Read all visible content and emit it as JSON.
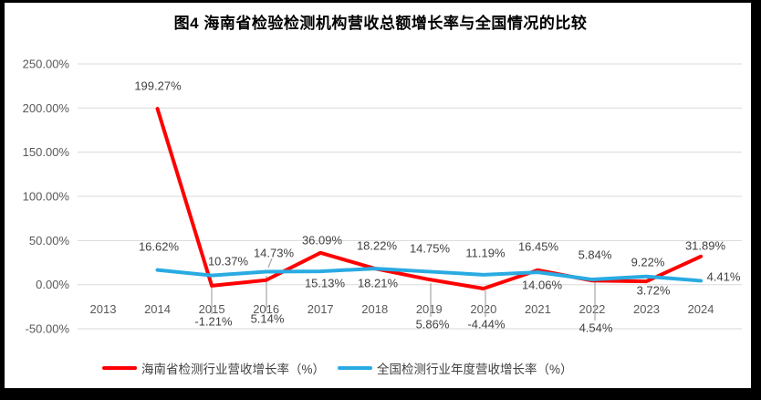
{
  "title": "图4  海南省检验检测机构营收总额增长率与全国情况的比较",
  "chart_data": {
    "type": "line",
    "categories": [
      "2013",
      "2014",
      "2015",
      "2016",
      "2017",
      "2018",
      "2019",
      "2020",
      "2021",
      "2022",
      "2023",
      "2024"
    ],
    "series": [
      {
        "name": "海南省检测行业营收增长率（%）",
        "color": "#FE0000",
        "values": [
          null,
          199.27,
          -1.21,
          5.14,
          36.09,
          18.22,
          5.86,
          -4.44,
          16.45,
          4.54,
          3.72,
          31.89
        ],
        "labels": [
          "199.27%",
          "-1.21%",
          "5.14%",
          "36.09%",
          "18.22%",
          "5.86%",
          "-4.44%",
          "16.45%",
          "4.54%",
          "3.72%",
          "31.89%"
        ]
      },
      {
        "name": "全国检测行业年度营收增长率（%）",
        "color": "#29ABE2",
        "values": [
          null,
          16.62,
          10.37,
          14.73,
          15.13,
          18.21,
          14.75,
          11.19,
          14.06,
          5.84,
          9.22,
          4.41
        ],
        "labels": [
          "16.62%",
          "10.37%",
          "14.73%",
          "15.13%",
          "18.21%",
          "14.75%",
          "11.19%",
          "14.06%",
          "5.84%",
          "9.22%",
          "4.41%"
        ]
      }
    ],
    "xlabel": "",
    "ylabel": "",
    "ylim": [
      -50,
      250
    ],
    "ytick_values": [
      250,
      200,
      150,
      100,
      50,
      0,
      -50
    ],
    "yticks": [
      "250.00%",
      "200.00%",
      "150.00%",
      "100.00%",
      "50.00%",
      "0.00%",
      "-50.00%"
    ],
    "grid": true,
    "legend_position": "bottom",
    "data_labels": true
  },
  "colors": {
    "grid": "#D9D9D9",
    "leader": "#A6A6A6",
    "axis_text": "#595959",
    "label_text": "#404040",
    "background": "#FFFFFF",
    "border": "#000000"
  }
}
